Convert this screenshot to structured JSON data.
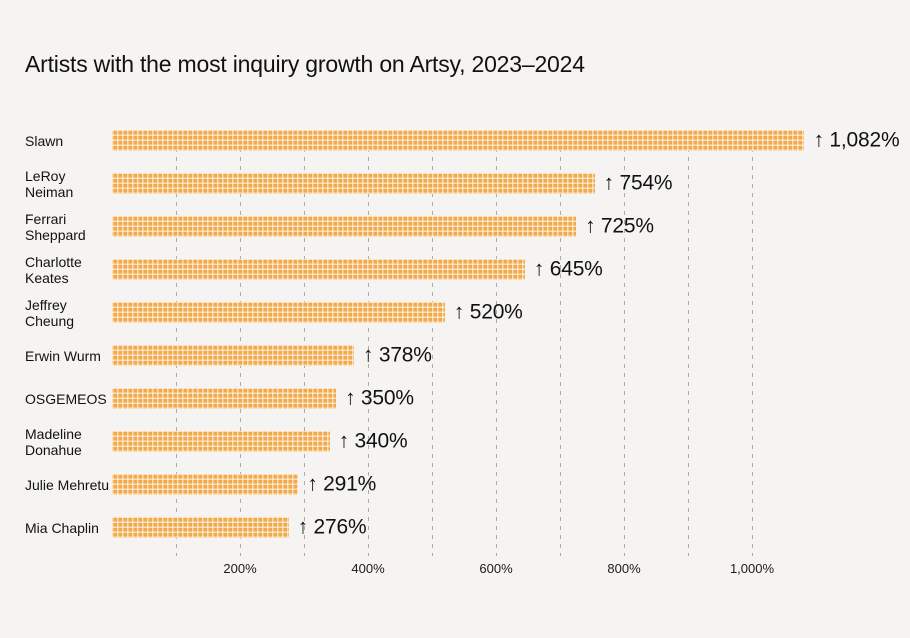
{
  "title": "Artists with the most inquiry growth on Artsy, 2023–2024",
  "chart_data": {
    "type": "bar",
    "orientation": "horizontal",
    "title": "Artists with the most inquiry growth on Artsy, 2023–2024",
    "categories": [
      "Slawn",
      "LeRoy Neiman",
      "Ferrari Sheppard",
      "Charlotte Keates",
      "Jeffrey Cheung",
      "Erwin Wurm",
      "OSGEMEOS",
      "Madeline Donahue",
      "Julie Mehretu",
      "Mia Chaplin"
    ],
    "values": [
      1082,
      754,
      725,
      645,
      520,
      378,
      350,
      340,
      291,
      276
    ],
    "value_labels": [
      "↑ 1,082%",
      "↑ 754%",
      "↑ 725%",
      "↑ 645%",
      "↑ 520%",
      "↑ 378%",
      "↑ 350%",
      "↑ 340%",
      "↑ 291%",
      "↑ 276%"
    ],
    "unit": "%",
    "xlabel": "",
    "ylabel": "",
    "x_tick_labels": [
      "200%",
      "400%",
      "600%",
      "800%",
      "1,000%"
    ],
    "x_tick_values": [
      200,
      400,
      600,
      800,
      1000
    ],
    "gridline_values": [
      100,
      200,
      300,
      400,
      500,
      600,
      700,
      800,
      900,
      1000
    ],
    "xlim": [
      0,
      1200
    ],
    "legend": "none",
    "grid": "vertical-dashed",
    "colors": {
      "background": "#F5F4F2",
      "bar": "#F2A94B",
      "bar_pattern_line": "#FFFDF8",
      "gridline": "#ADADAD",
      "text": "#111111"
    }
  }
}
